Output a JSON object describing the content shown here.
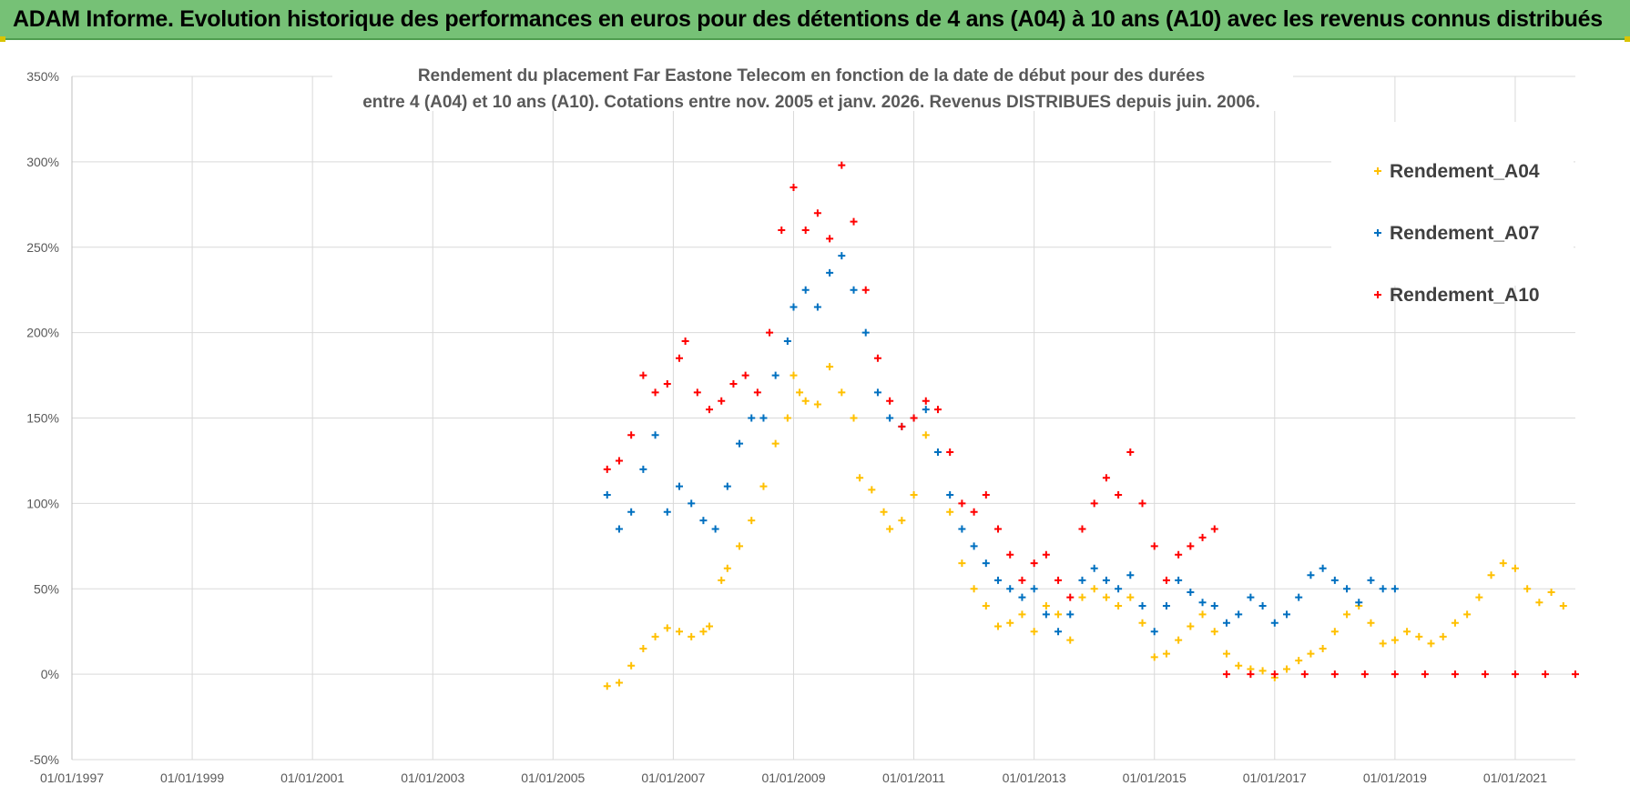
{
  "header": {
    "title": "ADAM Informe. Evolution historique des performances en euros pour des détentions de 4 ans (A04) à 10 ans (A10) avec les revenus connus distribués"
  },
  "colors": {
    "banner": "#76c176",
    "A04": "#ffc000",
    "A07": "#0070c0",
    "A10": "#ff0000",
    "grid": "#d9d9d9"
  },
  "chart_data": {
    "type": "scatter",
    "subtitle_line1": "Rendement du placement Far Eastone Telecom  en fonction de la date de début pour des durées",
    "subtitle_line2": "entre 4 (A04) et 10 ans (A10).  Cotations entre nov. 2005 et janv. 2026. Revenus DISTRIBUES depuis juin. 2006.",
    "xlabel": "",
    "ylabel": "",
    "xlim": [
      1997.0,
      2022.0
    ],
    "ylim": [
      -50,
      350
    ],
    "x_ticks": [
      1997,
      1999,
      2001,
      2003,
      2005,
      2007,
      2009,
      2011,
      2013,
      2015,
      2017,
      2019,
      2021
    ],
    "x_tick_labels": [
      "01/01/1997",
      "01/01/1999",
      "01/01/2001",
      "01/01/2003",
      "01/01/2005",
      "01/01/2007",
      "01/01/2009",
      "01/01/2011",
      "01/01/2013",
      "01/01/2015",
      "01/01/2017",
      "01/01/2019",
      "01/01/2021"
    ],
    "y_ticks": [
      -50,
      0,
      50,
      100,
      150,
      200,
      250,
      300,
      350
    ],
    "y_tick_labels": [
      "-50%",
      "0%",
      "50%",
      "100%",
      "150%",
      "200%",
      "250%",
      "300%",
      "350%"
    ],
    "marker": "+",
    "legend_position": "top-right",
    "series": [
      {
        "name": "Rendement_A04",
        "color": "#ffc000",
        "points": [
          [
            2005.9,
            -7
          ],
          [
            2006.1,
            -5
          ],
          [
            2006.3,
            5
          ],
          [
            2006.5,
            15
          ],
          [
            2006.7,
            22
          ],
          [
            2006.9,
            27
          ],
          [
            2007.1,
            25
          ],
          [
            2007.3,
            22
          ],
          [
            2007.5,
            25
          ],
          [
            2007.6,
            28
          ],
          [
            2007.8,
            55
          ],
          [
            2007.9,
            62
          ],
          [
            2008.1,
            75
          ],
          [
            2008.3,
            90
          ],
          [
            2008.5,
            110
          ],
          [
            2008.7,
            135
          ],
          [
            2008.9,
            150
          ],
          [
            2009.0,
            175
          ],
          [
            2009.1,
            165
          ],
          [
            2009.2,
            160
          ],
          [
            2009.4,
            158
          ],
          [
            2009.6,
            180
          ],
          [
            2009.8,
            165
          ],
          [
            2010.0,
            150
          ],
          [
            2010.1,
            115
          ],
          [
            2010.3,
            108
          ],
          [
            2010.5,
            95
          ],
          [
            2010.6,
            85
          ],
          [
            2010.8,
            90
          ],
          [
            2011.0,
            105
          ],
          [
            2011.2,
            140
          ],
          [
            2011.4,
            130
          ],
          [
            2011.6,
            95
          ],
          [
            2011.8,
            65
          ],
          [
            2012.0,
            50
          ],
          [
            2012.2,
            40
          ],
          [
            2012.4,
            28
          ],
          [
            2012.6,
            30
          ],
          [
            2012.8,
            35
          ],
          [
            2013.0,
            25
          ],
          [
            2013.2,
            40
          ],
          [
            2013.4,
            35
          ],
          [
            2013.6,
            20
          ],
          [
            2013.8,
            45
          ],
          [
            2014.0,
            50
          ],
          [
            2014.2,
            45
          ],
          [
            2014.4,
            40
          ],
          [
            2014.6,
            45
          ],
          [
            2014.8,
            30
          ],
          [
            2015.0,
            10
          ],
          [
            2015.2,
            12
          ],
          [
            2015.4,
            20
          ],
          [
            2015.6,
            28
          ],
          [
            2015.8,
            35
          ],
          [
            2016.0,
            25
          ],
          [
            2016.2,
            12
          ],
          [
            2016.4,
            5
          ],
          [
            2016.6,
            3
          ],
          [
            2016.8,
            2
          ],
          [
            2017.0,
            -2
          ],
          [
            2017.2,
            3
          ],
          [
            2017.4,
            8
          ],
          [
            2017.6,
            12
          ],
          [
            2017.8,
            15
          ],
          [
            2018.0,
            25
          ],
          [
            2018.2,
            35
          ],
          [
            2018.4,
            40
          ],
          [
            2018.6,
            30
          ],
          [
            2018.8,
            18
          ],
          [
            2019.0,
            20
          ],
          [
            2019.2,
            25
          ],
          [
            2019.4,
            22
          ],
          [
            2019.6,
            18
          ],
          [
            2019.8,
            22
          ],
          [
            2020.0,
            30
          ],
          [
            2020.2,
            35
          ],
          [
            2020.4,
            45
          ],
          [
            2020.6,
            58
          ],
          [
            2020.8,
            65
          ],
          [
            2021.0,
            62
          ],
          [
            2021.2,
            50
          ],
          [
            2021.4,
            42
          ],
          [
            2021.6,
            48
          ],
          [
            2021.8,
            40
          ]
        ]
      },
      {
        "name": "Rendement_A07",
        "color": "#0070c0",
        "points": [
          [
            2005.9,
            105
          ],
          [
            2006.1,
            85
          ],
          [
            2006.3,
            95
          ],
          [
            2006.5,
            120
          ],
          [
            2006.7,
            140
          ],
          [
            2006.9,
            95
          ],
          [
            2007.1,
            110
          ],
          [
            2007.3,
            100
          ],
          [
            2007.5,
            90
          ],
          [
            2007.7,
            85
          ],
          [
            2007.9,
            110
          ],
          [
            2008.1,
            135
          ],
          [
            2008.3,
            150
          ],
          [
            2008.5,
            150
          ],
          [
            2008.7,
            175
          ],
          [
            2008.9,
            195
          ],
          [
            2009.0,
            215
          ],
          [
            2009.2,
            225
          ],
          [
            2009.4,
            215
          ],
          [
            2009.6,
            235
          ],
          [
            2009.8,
            245
          ],
          [
            2010.0,
            225
          ],
          [
            2010.2,
            200
          ],
          [
            2010.4,
            165
          ],
          [
            2010.6,
            150
          ],
          [
            2010.8,
            145
          ],
          [
            2011.0,
            150
          ],
          [
            2011.2,
            155
          ],
          [
            2011.4,
            130
          ],
          [
            2011.6,
            105
          ],
          [
            2011.8,
            85
          ],
          [
            2012.0,
            75
          ],
          [
            2012.2,
            65
          ],
          [
            2012.4,
            55
          ],
          [
            2012.6,
            50
          ],
          [
            2012.8,
            45
          ],
          [
            2013.0,
            50
          ],
          [
            2013.2,
            35
          ],
          [
            2013.4,
            25
          ],
          [
            2013.6,
            35
          ],
          [
            2013.8,
            55
          ],
          [
            2014.0,
            62
          ],
          [
            2014.2,
            55
          ],
          [
            2014.4,
            50
          ],
          [
            2014.6,
            58
          ],
          [
            2014.8,
            40
          ],
          [
            2015.0,
            25
          ],
          [
            2015.2,
            40
          ],
          [
            2015.4,
            55
          ],
          [
            2015.6,
            48
          ],
          [
            2015.8,
            42
          ],
          [
            2016.0,
            40
          ],
          [
            2016.2,
            30
          ],
          [
            2016.4,
            35
          ],
          [
            2016.6,
            45
          ],
          [
            2016.8,
            40
          ],
          [
            2017.0,
            30
          ],
          [
            2017.2,
            35
          ],
          [
            2017.4,
            45
          ],
          [
            2017.6,
            58
          ],
          [
            2017.8,
            62
          ],
          [
            2018.0,
            55
          ],
          [
            2018.2,
            50
          ],
          [
            2018.4,
            42
          ],
          [
            2018.6,
            55
          ],
          [
            2018.8,
            50
          ],
          [
            2019.0,
            50
          ]
        ]
      },
      {
        "name": "Rendement_A10",
        "color": "#ff0000",
        "points": [
          [
            2005.9,
            120
          ],
          [
            2006.1,
            125
          ],
          [
            2006.3,
            140
          ],
          [
            2006.5,
            175
          ],
          [
            2006.7,
            165
          ],
          [
            2006.9,
            170
          ],
          [
            2007.1,
            185
          ],
          [
            2007.2,
            195
          ],
          [
            2007.4,
            165
          ],
          [
            2007.6,
            155
          ],
          [
            2007.8,
            160
          ],
          [
            2008.0,
            170
          ],
          [
            2008.2,
            175
          ],
          [
            2008.4,
            165
          ],
          [
            2008.6,
            200
          ],
          [
            2008.8,
            260
          ],
          [
            2009.0,
            285
          ],
          [
            2009.2,
            260
          ],
          [
            2009.4,
            270
          ],
          [
            2009.6,
            255
          ],
          [
            2009.8,
            298
          ],
          [
            2010.0,
            265
          ],
          [
            2010.2,
            225
          ],
          [
            2010.4,
            185
          ],
          [
            2010.6,
            160
          ],
          [
            2010.8,
            145
          ],
          [
            2011.0,
            150
          ],
          [
            2011.2,
            160
          ],
          [
            2011.4,
            155
          ],
          [
            2011.6,
            130
          ],
          [
            2011.8,
            100
          ],
          [
            2012.0,
            95
          ],
          [
            2012.2,
            105
          ],
          [
            2012.4,
            85
          ],
          [
            2012.6,
            70
          ],
          [
            2012.8,
            55
          ],
          [
            2013.0,
            65
          ],
          [
            2013.2,
            70
          ],
          [
            2013.4,
            55
          ],
          [
            2013.6,
            45
          ],
          [
            2013.8,
            85
          ],
          [
            2014.0,
            100
          ],
          [
            2014.2,
            115
          ],
          [
            2014.4,
            105
          ],
          [
            2014.6,
            130
          ],
          [
            2014.8,
            100
          ],
          [
            2015.0,
            75
          ],
          [
            2015.2,
            55
          ],
          [
            2015.4,
            70
          ],
          [
            2015.6,
            75
          ],
          [
            2015.8,
            80
          ],
          [
            2016.0,
            85
          ],
          [
            2016.2,
            0
          ],
          [
            2016.6,
            0
          ],
          [
            2017.0,
            0
          ],
          [
            2017.5,
            0
          ],
          [
            2018.0,
            0
          ],
          [
            2018.5,
            0
          ],
          [
            2019.0,
            0
          ],
          [
            2019.5,
            0
          ],
          [
            2020.0,
            0
          ],
          [
            2020.5,
            0
          ],
          [
            2021.0,
            0
          ],
          [
            2021.5,
            0
          ],
          [
            2022.0,
            0
          ]
        ]
      }
    ]
  }
}
